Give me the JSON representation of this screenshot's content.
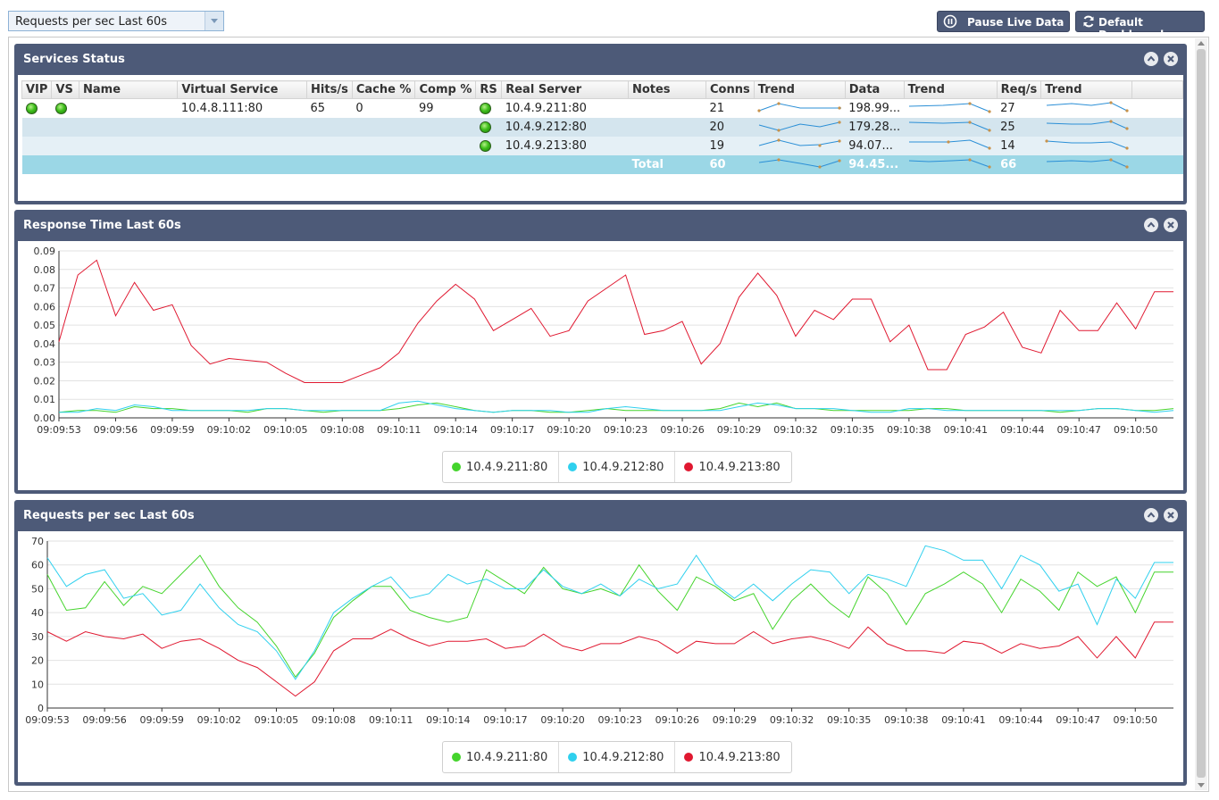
{
  "toolbar": {
    "view_select": "Requests per sec Last 60s",
    "pause_label": "Pause Live Data",
    "default_label": "Default Dashboard"
  },
  "colors": {
    "panel_header": "#4d5a78",
    "s211": "#44d42c",
    "s212": "#2fd0ee",
    "s213": "#e01830",
    "spark": "#2b8fd6"
  },
  "services": {
    "title": "Services Status",
    "columns": [
      "VIP",
      "VS",
      "Name",
      "Virtual Service",
      "Hits/s",
      "Cache %",
      "Comp %",
      "RS",
      "Real Server",
      "Notes",
      "Conns",
      "Trend",
      "Data",
      "Trend",
      "Req/s",
      "Trend"
    ],
    "virtual_service": "10.4.8.111:80",
    "hits": "65",
    "cache": "0",
    "comp": "99",
    "rows": [
      {
        "server": "10.4.9.211:80",
        "conns": "21",
        "data": "198.99...",
        "req": "27"
      },
      {
        "server": "10.4.9.212:80",
        "conns": "20",
        "data": "179.28...",
        "req": "25"
      },
      {
        "server": "10.4.9.213:80",
        "conns": "19",
        "data": "94.07...",
        "req": "14"
      }
    ],
    "total": {
      "label": "Total",
      "conns": "60",
      "data": "94.45...",
      "req": "66"
    }
  },
  "response_chart": {
    "title": "Response Time Last 60s",
    "legend": [
      "10.4.9.211:80",
      "10.4.9.212:80",
      "10.4.9.213:80"
    ]
  },
  "requests_chart": {
    "title": "Requests per sec Last 60s",
    "legend": [
      "10.4.9.211:80",
      "10.4.9.212:80",
      "10.4.9.213:80"
    ]
  },
  "chart_data": [
    {
      "type": "line",
      "title": "Response Time Last 60s",
      "ylim": [
        0,
        0.09
      ],
      "yticks": [
        "0.00",
        "0.01",
        "0.02",
        "0.03",
        "0.04",
        "0.05",
        "0.06",
        "0.07",
        "0.08",
        "0.09"
      ],
      "xticks": [
        "09:09:53",
        "09:09:56",
        "09:09:59",
        "09:10:02",
        "09:10:05",
        "09:10:08",
        "09:10:11",
        "09:10:14",
        "09:10:17",
        "09:10:20",
        "09:10:23",
        "09:10:26",
        "09:10:29",
        "09:10:32",
        "09:10:35",
        "09:10:38",
        "09:10:41",
        "09:10:44",
        "09:10:47",
        "09:10:50"
      ],
      "series": [
        {
          "name": "10.4.9.211:80",
          "values": [
            0.003,
            0.004,
            0.004,
            0.003,
            0.006,
            0.005,
            0.005,
            0.004,
            0.004,
            0.004,
            0.003,
            0.005,
            0.005,
            0.004,
            0.003,
            0.004,
            0.004,
            0.004,
            0.005,
            0.007,
            0.008,
            0.006,
            0.004,
            0.003,
            0.004,
            0.004,
            0.003,
            0.003,
            0.004,
            0.005,
            0.004,
            0.004,
            0.004,
            0.004,
            0.004,
            0.005,
            0.008,
            0.006,
            0.008,
            0.005,
            0.005,
            0.004,
            0.004,
            0.004,
            0.004,
            0.004,
            0.005,
            0.005,
            0.004,
            0.004,
            0.004,
            0.004,
            0.004,
            0.003,
            0.004,
            0.005,
            0.005,
            0.004,
            0.004,
            0.005
          ]
        },
        {
          "name": "10.4.9.212:80",
          "values": [
            0.003,
            0.003,
            0.005,
            0.004,
            0.007,
            0.006,
            0.004,
            0.004,
            0.004,
            0.004,
            0.004,
            0.005,
            0.005,
            0.004,
            0.004,
            0.004,
            0.004,
            0.004,
            0.008,
            0.009,
            0.007,
            0.005,
            0.004,
            0.003,
            0.004,
            0.004,
            0.004,
            0.003,
            0.003,
            0.005,
            0.006,
            0.005,
            0.004,
            0.004,
            0.004,
            0.004,
            0.006,
            0.008,
            0.007,
            0.005,
            0.005,
            0.005,
            0.004,
            0.003,
            0.003,
            0.005,
            0.005,
            0.004,
            0.004,
            0.004,
            0.004,
            0.004,
            0.004,
            0.004,
            0.004,
            0.005,
            0.005,
            0.004,
            0.003,
            0.004
          ]
        },
        {
          "name": "10.4.9.213:80",
          "values": [
            0.041,
            0.077,
            0.085,
            0.055,
            0.073,
            0.058,
            0.061,
            0.039,
            0.029,
            0.032,
            0.031,
            0.03,
            0.024,
            0.019,
            0.019,
            0.019,
            0.023,
            0.027,
            0.035,
            0.051,
            0.063,
            0.072,
            0.064,
            0.047,
            0.053,
            0.059,
            0.044,
            0.047,
            0.063,
            0.07,
            0.077,
            0.045,
            0.047,
            0.052,
            0.029,
            0.04,
            0.065,
            0.078,
            0.066,
            0.044,
            0.058,
            0.053,
            0.064,
            0.064,
            0.041,
            0.05,
            0.026,
            0.026,
            0.045,
            0.049,
            0.057,
            0.038,
            0.035,
            0.058,
            0.047,
            0.047,
            0.062,
            0.048,
            0.068,
            0.068
          ]
        }
      ]
    },
    {
      "type": "line",
      "title": "Requests per sec Last 60s",
      "ylim": [
        0,
        70
      ],
      "yticks": [
        "0",
        "10",
        "20",
        "30",
        "40",
        "50",
        "60",
        "70"
      ],
      "xticks": [
        "09:09:53",
        "09:09:56",
        "09:09:59",
        "09:10:02",
        "09:10:05",
        "09:10:08",
        "09:10:11",
        "09:10:14",
        "09:10:17",
        "09:10:20",
        "09:10:23",
        "09:10:26",
        "09:10:29",
        "09:10:32",
        "09:10:35",
        "09:10:38",
        "09:10:41",
        "09:10:44",
        "09:10:47",
        "09:10:50"
      ],
      "series": [
        {
          "name": "10.4.9.211:80",
          "values": [
            56,
            41,
            42,
            53,
            43,
            51,
            48,
            56,
            64,
            51,
            42,
            36,
            26,
            13,
            23,
            38,
            45,
            51,
            51,
            41,
            38,
            36,
            38,
            58,
            53,
            48,
            59,
            50,
            48,
            50,
            47,
            60,
            49,
            41,
            55,
            51,
            45,
            48,
            33,
            45,
            52,
            44,
            38,
            55,
            48,
            35,
            48,
            52,
            57,
            52,
            40,
            54,
            49,
            41,
            57,
            51,
            55,
            40,
            57,
            57
          ]
        },
        {
          "name": "10.4.9.212:80",
          "values": [
            63,
            51,
            56,
            58,
            46,
            48,
            39,
            41,
            52,
            42,
            35,
            32,
            24,
            12,
            24,
            40,
            46,
            51,
            55,
            46,
            48,
            56,
            52,
            54,
            50,
            50,
            58,
            51,
            48,
            52,
            47,
            54,
            50,
            52,
            64,
            52,
            46,
            52,
            45,
            52,
            58,
            57,
            48,
            56,
            54,
            51,
            68,
            66,
            62,
            62,
            50,
            64,
            60,
            49,
            52,
            35,
            54,
            46,
            61,
            61
          ]
        },
        {
          "name": "10.4.9.213:80",
          "values": [
            32,
            28,
            32,
            30,
            29,
            31,
            25,
            28,
            29,
            25,
            20,
            17,
            11,
            5,
            11,
            24,
            29,
            29,
            33,
            29,
            26,
            28,
            28,
            29,
            25,
            26,
            31,
            26,
            24,
            27,
            27,
            30,
            28,
            23,
            28,
            27,
            27,
            32,
            27,
            29,
            30,
            28,
            25,
            34,
            27,
            24,
            24,
            23,
            28,
            27,
            23,
            27,
            25,
            26,
            30,
            21,
            30,
            21,
            36,
            36
          ]
        }
      ]
    }
  ]
}
